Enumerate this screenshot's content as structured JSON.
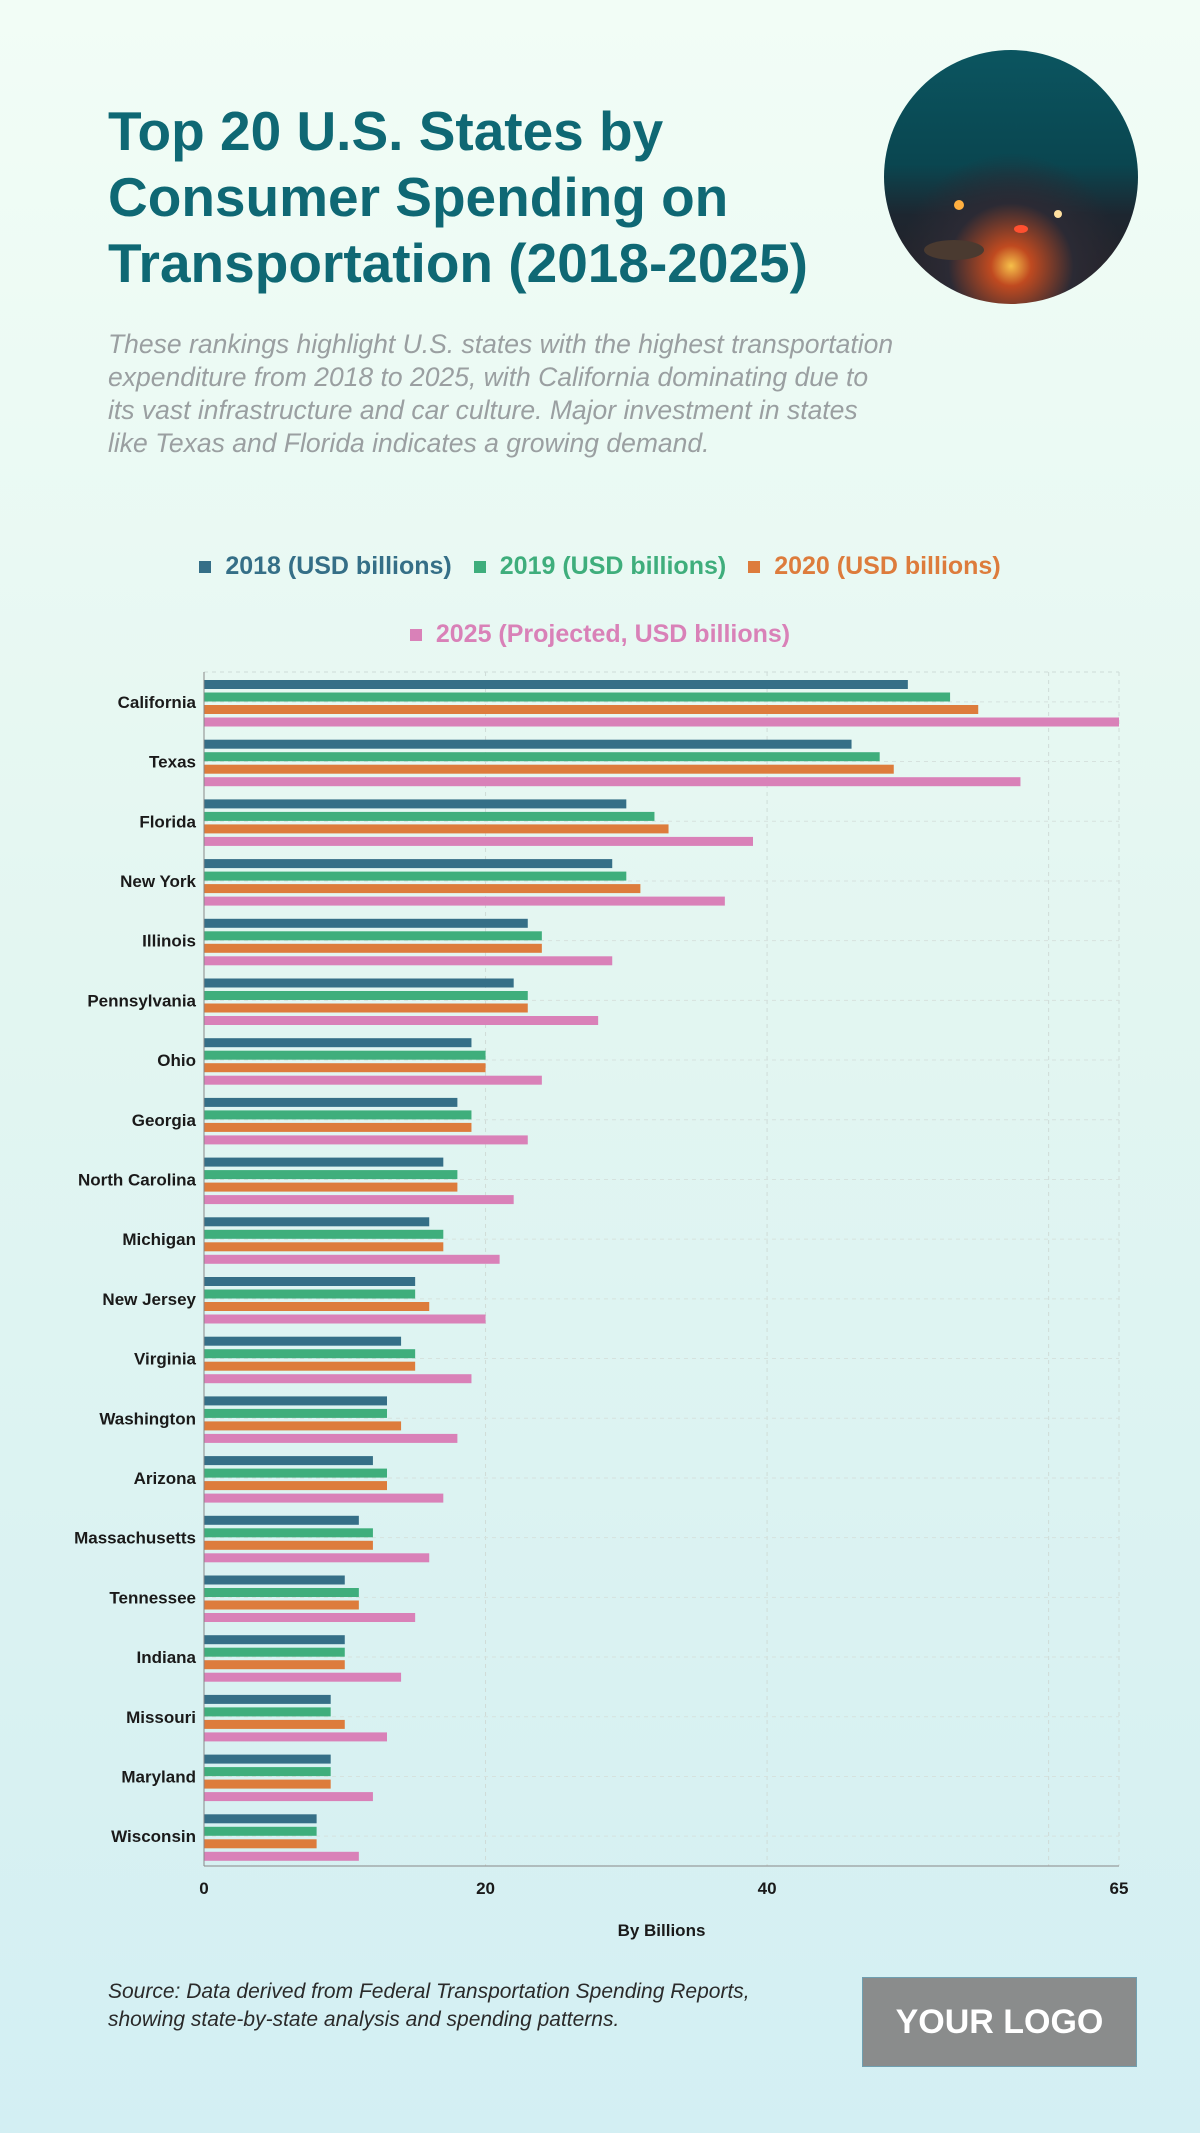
{
  "header": {
    "title": "Top 20 U.S. States by Consumer Spending on Transportation (2018-2025)",
    "subtitle": "These rankings highlight U.S. states with the highest transportation expenditure from 2018 to 2025, with California dominating due to its vast infrastructure and car culture. Major investment in states like Texas and Florida indicates a growing demand."
  },
  "footer": {
    "source": "Source: Data derived from Federal Transportation Spending Reports, showing state-by-state analysis and spending patterns.",
    "logo": "YOUR LOGO"
  },
  "chart_data": {
    "type": "bar",
    "orientation": "horizontal",
    "categories": [
      "California",
      "Texas",
      "Florida",
      "New York",
      "Illinois",
      "Pennsylvania",
      "Ohio",
      "Georgia",
      "North Carolina",
      "Michigan",
      "New Jersey",
      "Virginia",
      "Washington",
      "Arizona",
      "Massachusetts",
      "Tennessee",
      "Indiana",
      "Missouri",
      "Maryland",
      "Wisconsin"
    ],
    "series": [
      {
        "name": "2018 (USD billions)",
        "color": "#356f87",
        "values": [
          50,
          46,
          30,
          29,
          23,
          22,
          19,
          18,
          17,
          16,
          15,
          14,
          13,
          12,
          11,
          10,
          10,
          9,
          9,
          8
        ]
      },
      {
        "name": "2019 (USD billions)",
        "color": "#3fae7c",
        "values": [
          53,
          48,
          32,
          30,
          24,
          23,
          20,
          19,
          18,
          17,
          15,
          15,
          13,
          13,
          12,
          11,
          10,
          9,
          9,
          8
        ]
      },
      {
        "name": "2020 (USD billions)",
        "color": "#dd7c3c",
        "values": [
          55,
          49,
          33,
          31,
          24,
          23,
          20,
          19,
          18,
          17,
          16,
          15,
          14,
          13,
          12,
          11,
          10,
          10,
          9,
          8
        ]
      },
      {
        "name": "2025 (Projected, USD billions)",
        "color": "#d981b8",
        "values": [
          65,
          58,
          39,
          37,
          29,
          28,
          24,
          23,
          22,
          21,
          20,
          19,
          18,
          17,
          16,
          15,
          14,
          13,
          12,
          11
        ]
      }
    ],
    "xlabel": "By Billions",
    "xlim": [
      0,
      65
    ],
    "xticks": [
      "0",
      "20",
      "40",
      "65"
    ],
    "grid": true,
    "legend_position": "top"
  }
}
